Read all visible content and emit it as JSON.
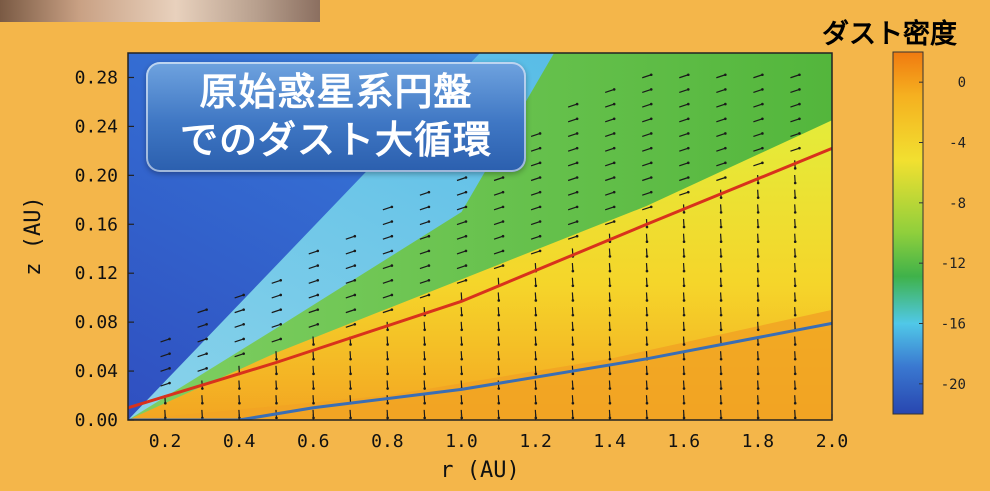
{
  "badge": {
    "line1": "原始惑星系円盤",
    "line2": "でのダスト大循環"
  },
  "colorbar": {
    "title": "ダスト密度",
    "ticks": [
      "0",
      "-4",
      "-8",
      "-12",
      "-16",
      "-20"
    ]
  },
  "colors": {
    "background": "#f4b64a",
    "red_line": "#d8321c",
    "blue_line": "#3a6eb5"
  },
  "chart_data": {
    "type": "heatmap",
    "xlabel": "r  (AU)",
    "ylabel": "z  (AU)",
    "xlim": [
      0.1,
      2.0
    ],
    "ylim": [
      0.0,
      0.3
    ],
    "x_ticks": [
      "0.2",
      "0.4",
      "0.6",
      "0.8",
      "1.0",
      "1.2",
      "1.4",
      "1.6",
      "1.8",
      "2.0"
    ],
    "y_ticks": [
      "0.00",
      "0.04",
      "0.08",
      "0.12",
      "0.16",
      "0.20",
      "0.24",
      "0.28"
    ],
    "colorscale_range": [
      -22,
      2
    ],
    "lines": [
      {
        "color": "red",
        "x": [
          0.1,
          0.5,
          1.0,
          1.5,
          2.0
        ],
        "y": [
          0.01,
          0.047,
          0.097,
          0.16,
          0.222
        ]
      },
      {
        "color": "blue",
        "x": [
          0.1,
          0.4,
          0.6,
          1.0,
          1.5,
          2.0
        ],
        "y": [
          0.0,
          0.0,
          0.01,
          0.025,
          0.05,
          0.079
        ]
      }
    ],
    "arrows": "velocity vector field overlay"
  }
}
